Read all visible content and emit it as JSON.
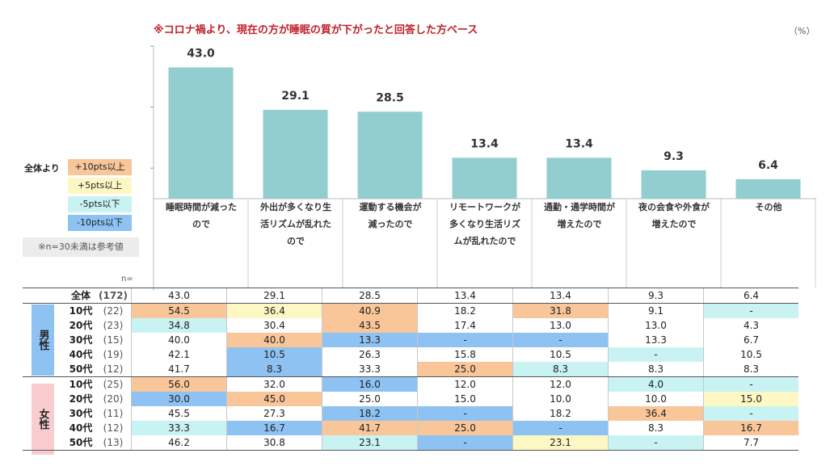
{
  "title": "※コロナ禍より、現在の方が睡眠の質が下がったと回答した方ベース",
  "unit": "（%）",
  "legend": {
    "label": "全体より",
    "items": [
      {
        "text": "+10pts以上",
        "color": "#f9c69a"
      },
      {
        "text": "+5pts以上",
        "color": "#fdf7c4"
      },
      {
        "text": "-5pts以下",
        "color": "#c9f2f2"
      },
      {
        "text": "-10pts以下",
        "color": "#8ec2f2"
      }
    ]
  },
  "note": "※n=30未満は参考値",
  "n_label": "n=",
  "colors": {
    "bar": "#92cdd0",
    "title": "#c0202a",
    "male": "#8ec2f2",
    "female": "#f9cdd0"
  },
  "chart_data": {
    "type": "bar",
    "title": "※コロナ禍より、現在の方が睡眠の質が下がったと回答した方ベース",
    "ylabel": "（%）",
    "ylim": [
      0,
      50
    ],
    "categories": [
      "睡眠時間が減ったので",
      "外出が多くなり生活リズムが乱れたので",
      "運動する機会が減ったので",
      "リモートワークが多くなり生活リズムが乱れたので",
      "通勤・通学時間が増えたので",
      "夜の会食や外食が増えたので",
      "その他"
    ],
    "values": [
      43.0,
      29.1,
      28.5,
      13.4,
      13.4,
      9.3,
      6.4
    ],
    "value_labels": [
      "43.0",
      "29.1",
      "28.5",
      "13.4",
      "13.4",
      "9.3",
      "6.4"
    ]
  },
  "category_lines": [
    [
      "睡眠時間が減った",
      "ので"
    ],
    [
      "外出が多くなり生",
      "活リズムが乱れた",
      "ので"
    ],
    [
      "運動する機会が",
      "減ったので"
    ],
    [
      "リモートワークが",
      "多くなり生活リズ",
      "ムが乱れたので"
    ],
    [
      "通勤・通学時間が",
      "増えたので"
    ],
    [
      "夜の会食や外食が",
      "増えたので"
    ],
    [
      "その他"
    ]
  ],
  "table": {
    "total": {
      "label": "全体",
      "n": "(172)",
      "cells": [
        "43.0",
        "29.1",
        "28.5",
        "13.4",
        "13.4",
        "9.3",
        "6.4"
      ]
    },
    "groups": [
      {
        "label": "男性",
        "rows": [
          {
            "age": "10代",
            "n": "(22)",
            "cells": [
              [
                "54.5",
                "up10"
              ],
              [
                "36.4",
                "up5"
              ],
              [
                "40.9",
                "up10"
              ],
              [
                "18.2",
                ""
              ],
              [
                "31.8",
                "up10"
              ],
              [
                "9.1",
                ""
              ],
              [
                "-",
                "dn5"
              ]
            ]
          },
          {
            "age": "20代",
            "n": "(23)",
            "cells": [
              [
                "34.8",
                "dn5"
              ],
              [
                "30.4",
                ""
              ],
              [
                "43.5",
                "up10"
              ],
              [
                "17.4",
                ""
              ],
              [
                "13.0",
                ""
              ],
              [
                "13.0",
                ""
              ],
              [
                "4.3",
                ""
              ]
            ]
          },
          {
            "age": "30代",
            "n": "(15)",
            "cells": [
              [
                "40.0",
                ""
              ],
              [
                "40.0",
                "up10"
              ],
              [
                "13.3",
                "dn10"
              ],
              [
                "-",
                "dn10"
              ],
              [
                "-",
                "dn10"
              ],
              [
                "13.3",
                ""
              ],
              [
                "6.7",
                ""
              ]
            ]
          },
          {
            "age": "40代",
            "n": "(19)",
            "cells": [
              [
                "42.1",
                ""
              ],
              [
                "10.5",
                "dn10"
              ],
              [
                "26.3",
                ""
              ],
              [
                "15.8",
                ""
              ],
              [
                "10.5",
                ""
              ],
              [
                "-",
                "dn5"
              ],
              [
                "10.5",
                ""
              ]
            ]
          },
          {
            "age": "50代",
            "n": "(12)",
            "cells": [
              [
                "41.7",
                ""
              ],
              [
                "8.3",
                "dn10"
              ],
              [
                "33.3",
                ""
              ],
              [
                "25.0",
                "up10"
              ],
              [
                "8.3",
                "dn5"
              ],
              [
                "8.3",
                ""
              ],
              [
                "8.3",
                ""
              ]
            ]
          }
        ]
      },
      {
        "label": "女性",
        "rows": [
          {
            "age": "10代",
            "n": "(25)",
            "cells": [
              [
                "56.0",
                "up10"
              ],
              [
                "32.0",
                ""
              ],
              [
                "16.0",
                "dn10"
              ],
              [
                "12.0",
                ""
              ],
              [
                "12.0",
                ""
              ],
              [
                "4.0",
                "dn5"
              ],
              [
                "-",
                "dn5"
              ]
            ]
          },
          {
            "age": "20代",
            "n": "(20)",
            "cells": [
              [
                "30.0",
                "dn10"
              ],
              [
                "45.0",
                "up10"
              ],
              [
                "25.0",
                ""
              ],
              [
                "15.0",
                ""
              ],
              [
                "10.0",
                ""
              ],
              [
                "10.0",
                ""
              ],
              [
                "15.0",
                "up5"
              ]
            ]
          },
          {
            "age": "30代",
            "n": "(11)",
            "cells": [
              [
                "45.5",
                ""
              ],
              [
                "27.3",
                ""
              ],
              [
                "18.2",
                "dn10"
              ],
              [
                "-",
                "dn10"
              ],
              [
                "18.2",
                ""
              ],
              [
                "36.4",
                "up10"
              ],
              [
                "-",
                "dn5"
              ]
            ]
          },
          {
            "age": "40代",
            "n": "(12)",
            "cells": [
              [
                "33.3",
                "dn5"
              ],
              [
                "16.7",
                "dn10"
              ],
              [
                "41.7",
                "up10"
              ],
              [
                "25.0",
                "up10"
              ],
              [
                "-",
                "dn10"
              ],
              [
                "8.3",
                ""
              ],
              [
                "16.7",
                "up10"
              ]
            ]
          },
          {
            "age": "50代",
            "n": "(13)",
            "cells": [
              [
                "46.2",
                ""
              ],
              [
                "30.8",
                ""
              ],
              [
                "23.1",
                "dn5"
              ],
              [
                "-",
                "dn10"
              ],
              [
                "23.1",
                "up5"
              ],
              [
                "-",
                "dn5"
              ],
              [
                "7.7",
                ""
              ]
            ]
          }
        ]
      }
    ]
  }
}
